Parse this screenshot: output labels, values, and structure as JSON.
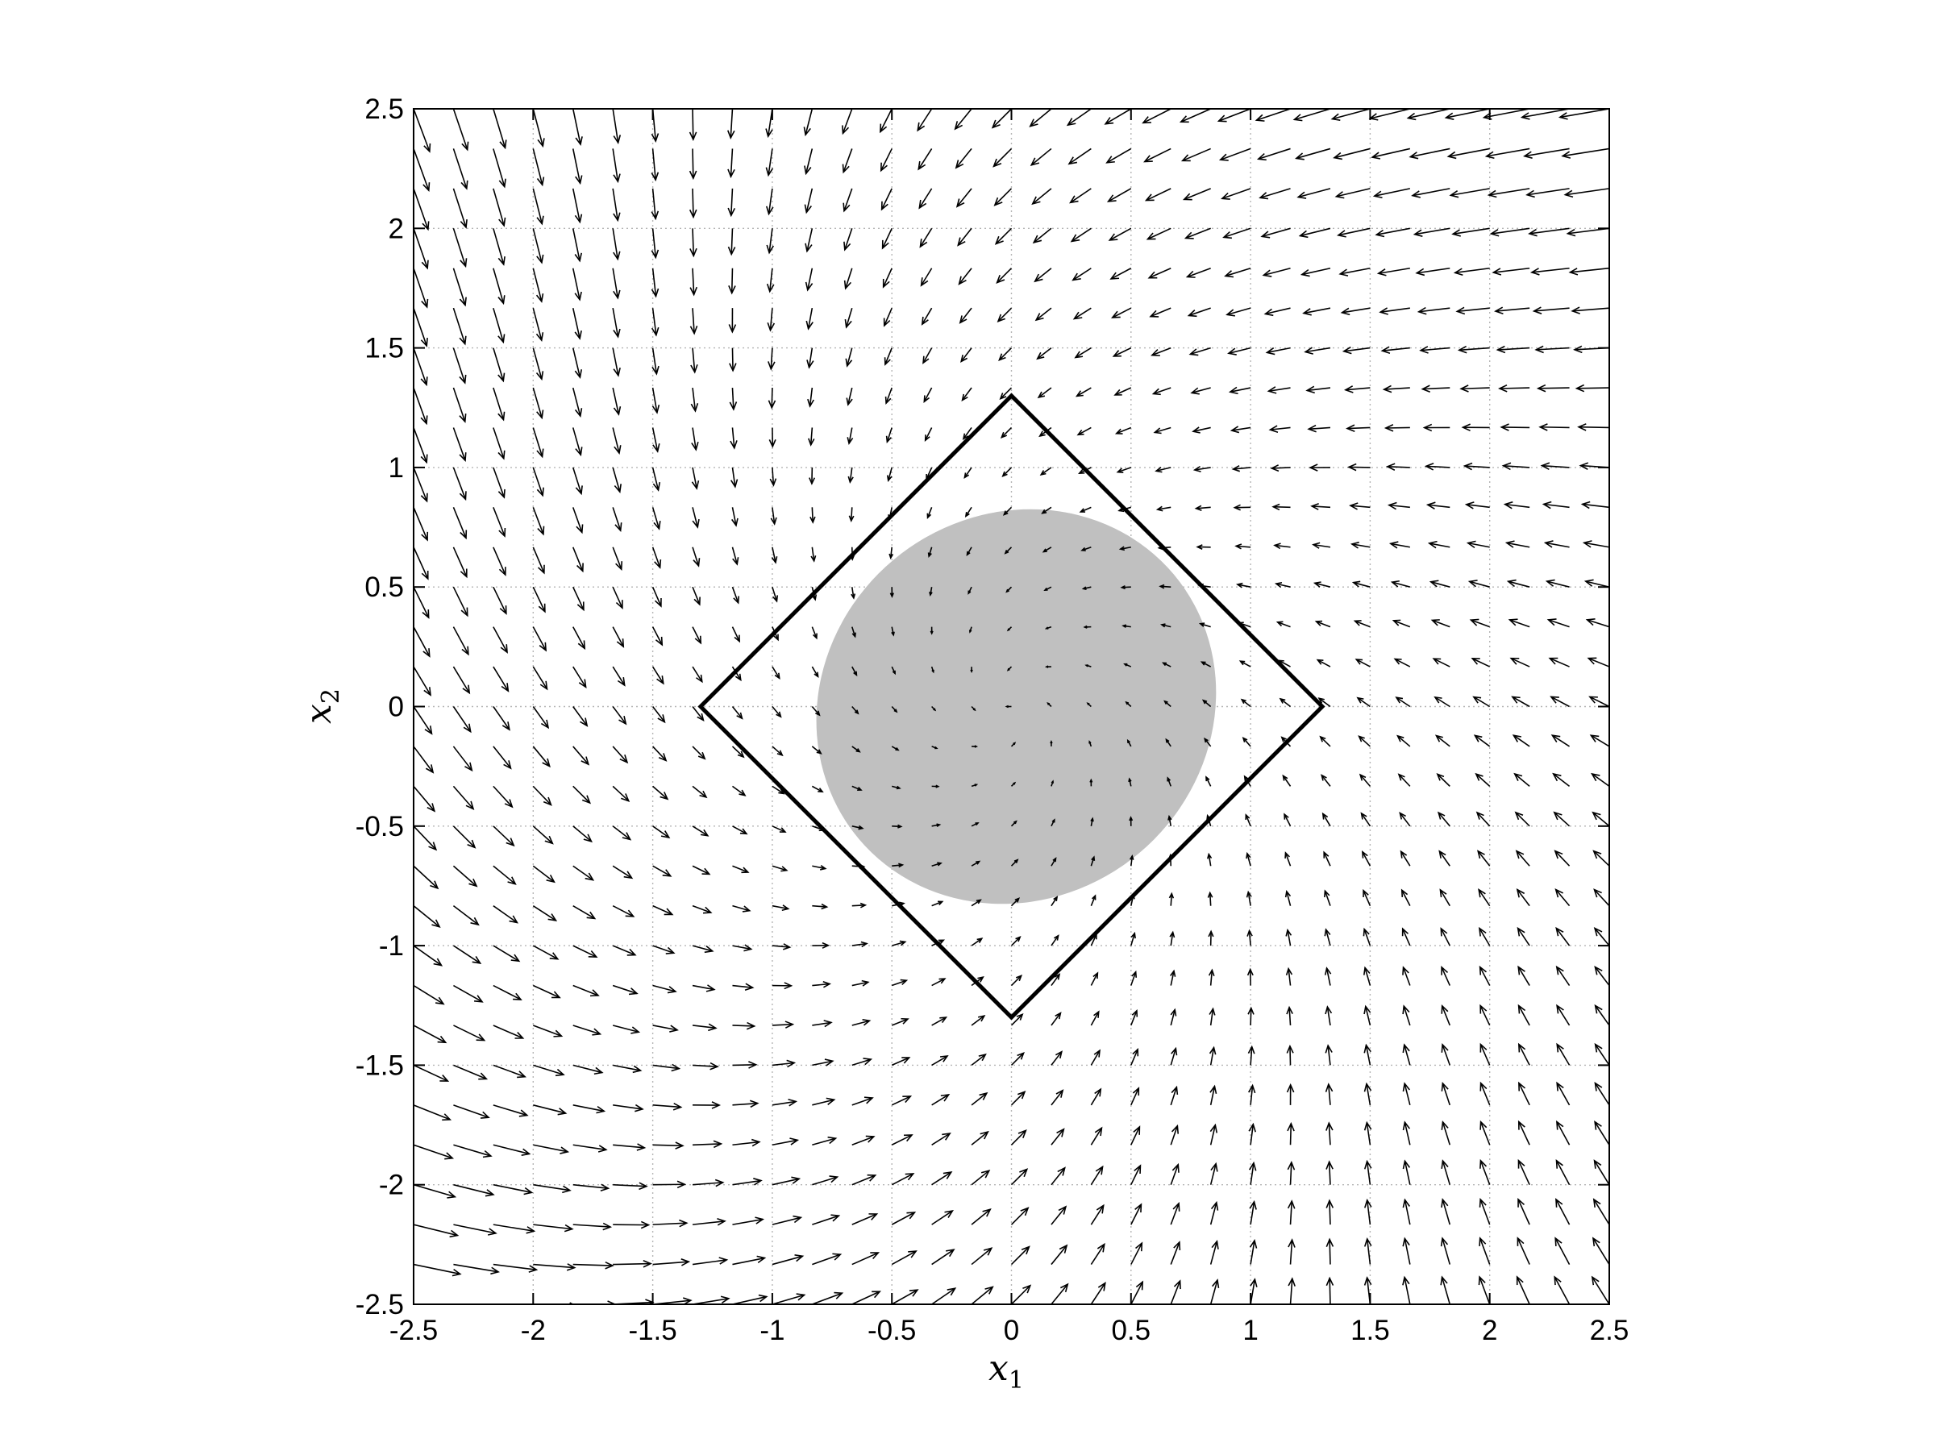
{
  "chart_data": {
    "type": "quiver",
    "title": "",
    "xlabel": "x",
    "xlabel_sub": "1",
    "ylabel": "x",
    "ylabel_sub": "2",
    "xlim": [
      -2.5,
      2.5
    ],
    "ylim": [
      -2.5,
      2.5
    ],
    "xticks": [
      -2.5,
      -2,
      -1.5,
      -1,
      -0.5,
      0,
      0.5,
      1,
      1.5,
      2,
      2.5
    ],
    "yticks": [
      -2.5,
      -2,
      -1.5,
      -1,
      -0.5,
      0,
      0.5,
      1,
      1.5,
      2,
      2.5
    ],
    "xtick_labels": [
      "-2.5",
      "-2",
      "-1.5",
      "-1",
      "-0.5",
      "0",
      "0.5",
      "1",
      "1.5",
      "2",
      "2.5"
    ],
    "ytick_labels": [
      "-2.5",
      "-2",
      "-1.5",
      "-1",
      "-0.5",
      "0",
      "0.5",
      "1",
      "1.5",
      "2",
      "2.5"
    ],
    "grid": true,
    "vector_field": {
      "grid_min": -2.5,
      "grid_max": 2.5,
      "grid_step": 0.1666667,
      "vector_field_rule": "dx1 = -x1 - x2 - 0.15*x1*x2^2 ; dx2 = x1 - x2 - 0.2*x1^2",
      "color": "#000000"
    },
    "region_of_attraction": {
      "shape": "ellipse",
      "center": [
        0.02,
        0.0
      ],
      "semi_axis_major": 0.86,
      "semi_axis_minor": 0.8,
      "rotation_deg": 40,
      "color": "#c0c0c0"
    },
    "diamond_boundary": {
      "vertices": [
        [
          0,
          1.3
        ],
        [
          1.3,
          0
        ],
        [
          0,
          -1.3
        ],
        [
          -1.3,
          0
        ]
      ],
      "color": "#000000"
    }
  }
}
